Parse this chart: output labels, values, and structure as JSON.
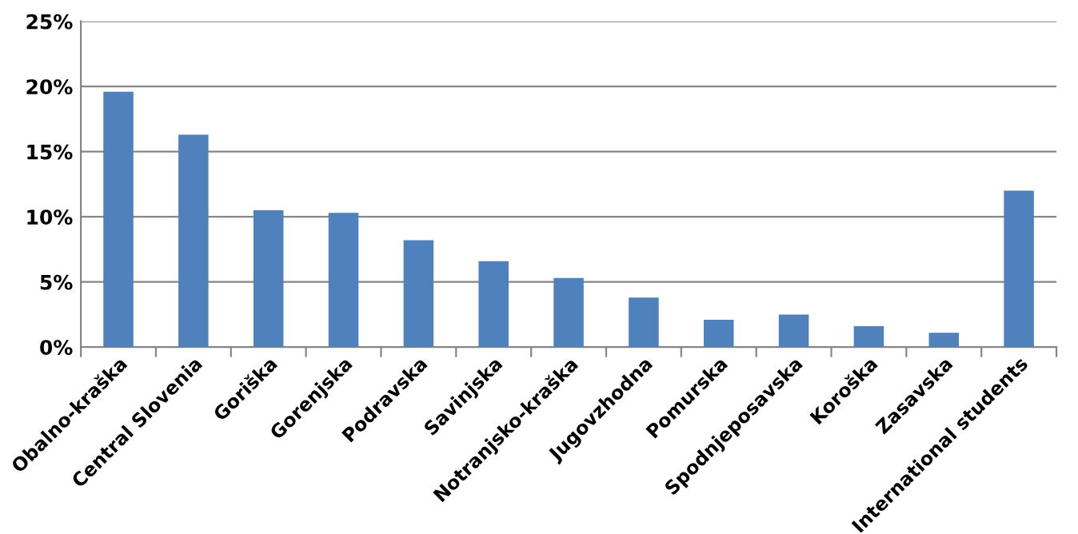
{
  "chart_data": {
    "type": "bar",
    "categories": [
      "Obalno-kraška",
      "Central Slovenia",
      "Goriška",
      "Gorenjska",
      "Podravska",
      "Savinjska",
      "Notranjsko-kraška",
      "Jugovzhodna",
      "Pomurska",
      "Spodnjeposavska",
      "Koroška",
      "Zasavska",
      "International students"
    ],
    "values": [
      19.6,
      16.3,
      10.5,
      10.3,
      8.2,
      6.6,
      5.3,
      3.8,
      2.1,
      2.5,
      1.6,
      1.1,
      12.0
    ],
    "color": "#4f81bd",
    "ylim": [
      0,
      25
    ],
    "yticks": [
      {
        "value": 0,
        "label": "0%"
      },
      {
        "value": 5,
        "label": "5%"
      },
      {
        "value": 10,
        "label": "10%"
      },
      {
        "value": 15,
        "label": "15%"
      },
      {
        "value": 20,
        "label": "20%"
      },
      {
        "value": 25,
        "label": "25%"
      }
    ],
    "grid": "y",
    "legend": false
  }
}
